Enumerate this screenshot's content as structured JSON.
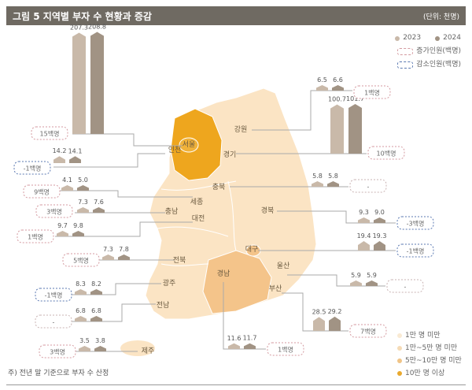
{
  "title": "그림 5  지역별 부자 수 현황과 증감",
  "unit": "(단위: 천명)",
  "note": "주) 전년 말 기준으로 부자 수 산정",
  "colors": {
    "y2023": "#c9b9a9",
    "y2024": "#a19384",
    "increase": "#d49aa0",
    "decrease": "#5b79b2",
    "title_bg": "#6f6a62"
  },
  "legend": {
    "years": [
      "2023",
      "2024"
    ],
    "increase_label": "증가인원(백명)",
    "decrease_label": "감소인원(백명)",
    "categories": [
      {
        "label": "1만 명 미만",
        "color": "#f9ead3"
      },
      {
        "label": "1만~5만 명 미만",
        "color": "#f5dbb6"
      },
      {
        "label": "5만~10만 명 미만",
        "color": "#f0c487"
      },
      {
        "label": "10만 명 이상",
        "color": "#e9a92e"
      }
    ]
  },
  "chart_data": {
    "type": "bar",
    "title": "그림 5  지역별 부자 수 현황과 증감",
    "unit": "천명",
    "series": [
      {
        "name": "2023"
      },
      {
        "name": "2024"
      }
    ],
    "regions": [
      {
        "name": "서울",
        "v2023": 207.3,
        "v2024": 208.8,
        "change": "15백명",
        "dir": "up"
      },
      {
        "name": "인천",
        "v2023": 14.2,
        "v2024": 14.1,
        "change": "-1백명",
        "dir": "down"
      },
      {
        "name": "경기",
        "v2023": 100.7,
        "v2024": 101.7,
        "change": "10백명",
        "dir": "up"
      },
      {
        "name": "강원",
        "v2023": 6.5,
        "v2024": 6.6,
        "change": "1백명",
        "dir": "up"
      },
      {
        "name": "충북",
        "v2023": 5.8,
        "v2024": 5.8,
        "change": "-",
        "dir": "none"
      },
      {
        "name": "세종",
        "v2023": 4.1,
        "v2024": 5.0,
        "change": "9백명",
        "dir": "up"
      },
      {
        "name": "충남",
        "v2023": 7.3,
        "v2024": 7.6,
        "change": "3백명",
        "dir": "up"
      },
      {
        "name": "대전",
        "v2023": 9.7,
        "v2024": 9.8,
        "change": "1백명",
        "dir": "up"
      },
      {
        "name": "경북",
        "v2023": 9.3,
        "v2024": 9.0,
        "change": "-3백명",
        "dir": "down"
      },
      {
        "name": "대구",
        "v2023": 19.4,
        "v2024": 19.3,
        "change": "-1백명",
        "dir": "down"
      },
      {
        "name": "전북",
        "v2023": 7.3,
        "v2024": 7.8,
        "change": "5백명",
        "dir": "up"
      },
      {
        "name": "울산",
        "v2023": 5.9,
        "v2024": 5.9,
        "change": "-",
        "dir": "none"
      },
      {
        "name": "경남",
        "v2023": 11.6,
        "v2024": 11.7,
        "change": "1백명",
        "dir": "up"
      },
      {
        "name": "광주",
        "v2023": 8.3,
        "v2024": 8.2,
        "change": "-1백명",
        "dir": "down"
      },
      {
        "name": "부산",
        "v2023": 28.5,
        "v2024": 29.2,
        "change": "7백명",
        "dir": "up"
      },
      {
        "name": "전남",
        "v2023": 6.8,
        "v2024": 6.8,
        "change": "-",
        "dir": "none"
      },
      {
        "name": "제주",
        "v2023": 3.5,
        "v2024": 3.8,
        "change": "3백명",
        "dir": "up"
      }
    ]
  }
}
